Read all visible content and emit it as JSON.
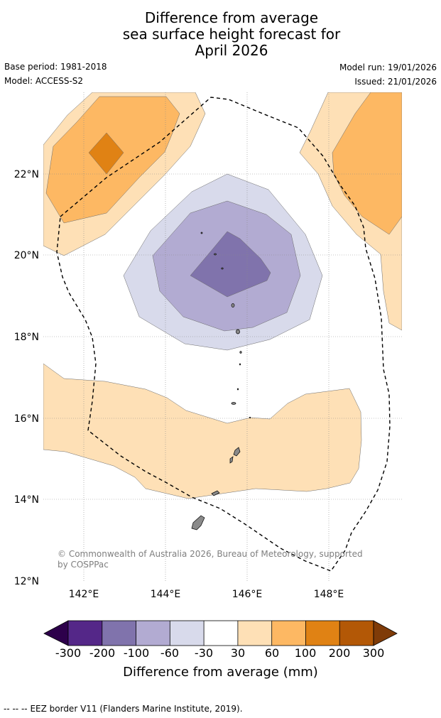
{
  "title": {
    "line1": "Difference from average",
    "line2": "sea surface height forecast for",
    "line3": "April 2026"
  },
  "meta": {
    "base_period": "Base period: 1981-2018",
    "model": "Model: ACCESS-S2",
    "model_run": "Model run: 19/01/2026",
    "issued": "Issued: 21/01/2026"
  },
  "map": {
    "lon_range": [
      141.0,
      149.8
    ],
    "lat_range": [
      12.0,
      24.0
    ],
    "lat_ticks": [
      "22°N",
      "20°N",
      "18°N",
      "16°N",
      "14°N",
      "12°N"
    ],
    "lon_ticks": [
      "142°E",
      "144°E",
      "146°E",
      "148°E"
    ],
    "copyright_line1": "© Commonwealth of Australia 2026, Bureau of Meteorology, supported",
    "copyright_line2": "by COSPPac"
  },
  "colorbar": {
    "title": "Difference from average (mm)",
    "tick_labels": [
      "-300",
      "-200",
      "-100",
      "-60",
      "-30",
      "30",
      "60",
      "100",
      "200",
      "300"
    ],
    "colors": {
      "below_min": "#2d004b",
      "c1": "#542788",
      "c2": "#8073ac",
      "c3": "#b2abd2",
      "c4": "#d8daeb",
      "c5": "#ffffff",
      "c6": "#fee0b6",
      "c7": "#fdb863",
      "c8": "#e08214",
      "c9": "#b35806",
      "above_max": "#7f3b08"
    }
  },
  "footer": {
    "legend_symbol": "-- -- --",
    "legend_text": "EEZ border V11 (Flanders Marine Institute, 2019)."
  }
}
